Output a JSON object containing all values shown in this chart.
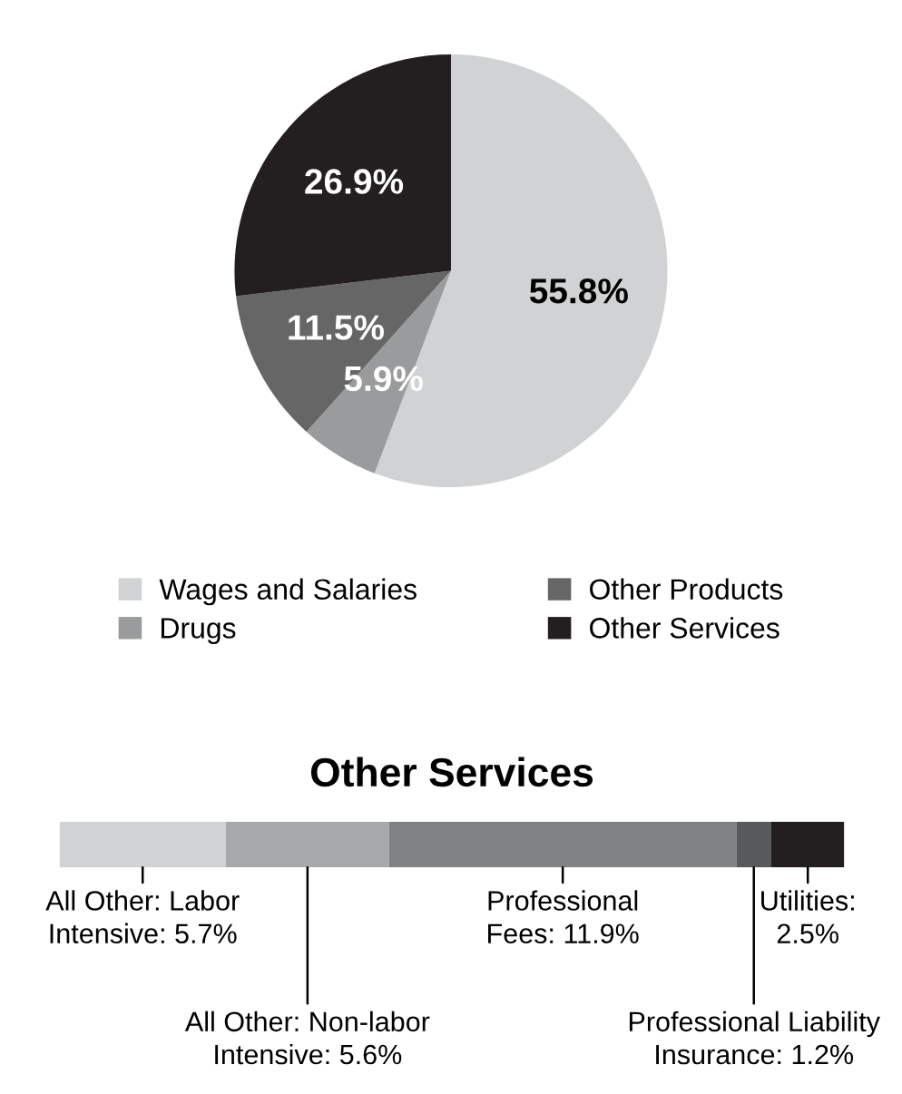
{
  "chart_data": [
    {
      "type": "pie",
      "categories": [
        "Wages and Salaries",
        "Drugs",
        "Other Products",
        "Other Services"
      ],
      "values": [
        55.8,
        5.9,
        11.5,
        26.9
      ],
      "value_labels": [
        "55.8%",
        "5.9%",
        "11.5%",
        "26.9%"
      ],
      "colors": [
        "#d1d2d3",
        "#9a9b9c",
        "#666667",
        "#231f20"
      ],
      "legend": "bottom"
    },
    {
      "type": "bar",
      "title": "Other Services",
      "orientation": "horizontal",
      "stacked": true,
      "categories": [
        null
      ],
      "series": [
        {
          "color": "#d1d2d3",
          "values": [
            5.7
          ],
          "value_labels": [
            "All Other: Labor Intensive: 5.7%"
          ]
        },
        {
          "color": "#a7a8a9",
          "values": [
            5.6
          ],
          "value_labels": [
            "All Other: Non-labor Intensive: 5.6%"
          ]
        },
        {
          "color": "#808182",
          "values": [
            11.9
          ],
          "value_labels": [
            "Professional Fees: 11.9%"
          ]
        },
        {
          "color": "#58595b",
          "values": [
            1.2
          ],
          "value_labels": [
            "Professional Liability Insurance: 1.2%"
          ]
        },
        {
          "color": "#231f20",
          "values": [
            2.5
          ],
          "value_labels": [
            "Utilities: 2.5%"
          ]
        }
      ]
    }
  ]
}
